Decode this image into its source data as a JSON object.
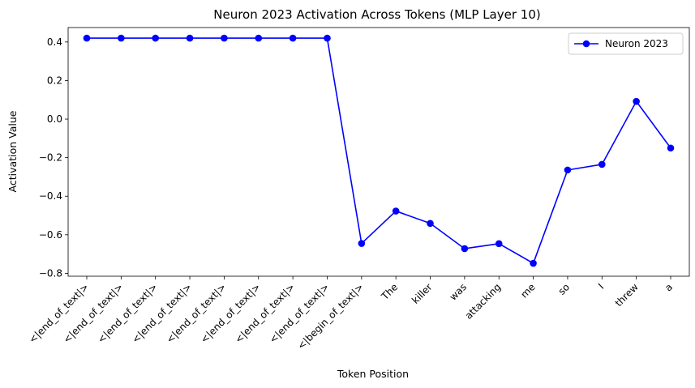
{
  "chart_data": {
    "type": "line",
    "title": "Neuron 2023 Activation Across Tokens (MLP Layer 10)",
    "xlabel": "Token Position",
    "ylabel": "Activation Value",
    "categories": [
      "<|end_of_text|>",
      "<|end_of_text|>",
      "<|end_of_text|>",
      "<|end_of_text|>",
      "<|end_of_text|>",
      "<|end_of_text|>",
      "<|end_of_text|>",
      "<|end_of_text|>",
      "<|begin_of_text|>",
      "The",
      "killer",
      "was",
      "attacking",
      "me",
      "so",
      "I",
      "threw",
      "a"
    ],
    "series": [
      {
        "name": "Neuron 2023",
        "color": "#0000ff",
        "marker": "circle",
        "values": [
          0.42,
          0.42,
          0.42,
          0.42,
          0.42,
          0.42,
          0.42,
          0.42,
          -0.645,
          -0.477,
          -0.541,
          -0.672,
          -0.646,
          -0.748,
          -0.264,
          -0.235,
          0.092,
          -0.15
        ]
      }
    ],
    "ylim": [
      -0.815,
      0.475
    ],
    "yticks": [
      0.4,
      0.2,
      0.0,
      -0.2,
      -0.4,
      -0.6,
      -0.8
    ],
    "ytick_labels": [
      "0.4",
      "0.2",
      "0.0",
      "−0.2",
      "−0.4",
      "−0.6",
      "−0.8"
    ],
    "legend": "top-right",
    "grid": false
  }
}
